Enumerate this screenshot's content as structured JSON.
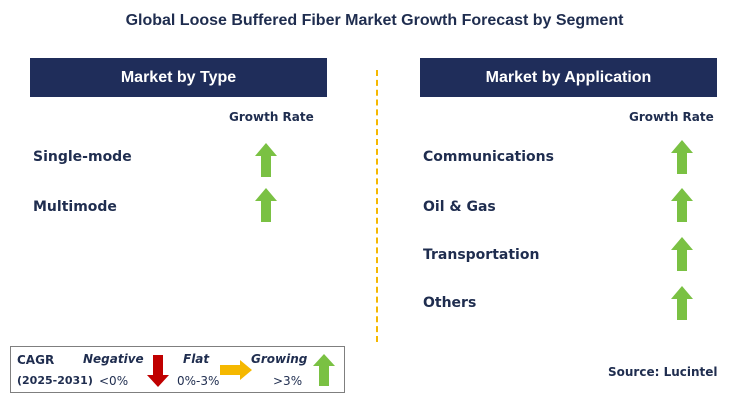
{
  "title": "Global Loose Buffered Fiber Market Growth Forecast by Segment",
  "left_panel": {
    "header": "Market by Type",
    "column_label": "Growth Rate",
    "items": [
      {
        "label": "Single-mode",
        "trend": "growing"
      },
      {
        "label": "Multimode",
        "trend": "growing"
      }
    ]
  },
  "right_panel": {
    "header": "Market by Application",
    "column_label": "Growth Rate",
    "items": [
      {
        "label": "Communications",
        "trend": "growing"
      },
      {
        "label": "Oil & Gas",
        "trend": "growing"
      },
      {
        "label": "Transportation",
        "trend": "growing"
      },
      {
        "label": "Others",
        "trend": "growing"
      }
    ]
  },
  "legend": {
    "cagr_label": "CAGR",
    "period": "(2025-2031)",
    "negative": {
      "label": "Negative",
      "range": "<0%"
    },
    "flat": {
      "label": "Flat",
      "range": "0%-3%"
    },
    "growing": {
      "label": "Growing",
      "range": ">3%"
    }
  },
  "source": "Source: Lucintel",
  "colors": {
    "header_bg": "#1f2d5a",
    "growing_arrow": "#7ac143",
    "negative_arrow": "#c00000",
    "flat_arrow": "#f5b800",
    "divider": "#f5b800"
  },
  "icons": {
    "growing": "up-arrow-icon",
    "negative": "down-arrow-icon",
    "flat": "right-arrow-icon"
  }
}
